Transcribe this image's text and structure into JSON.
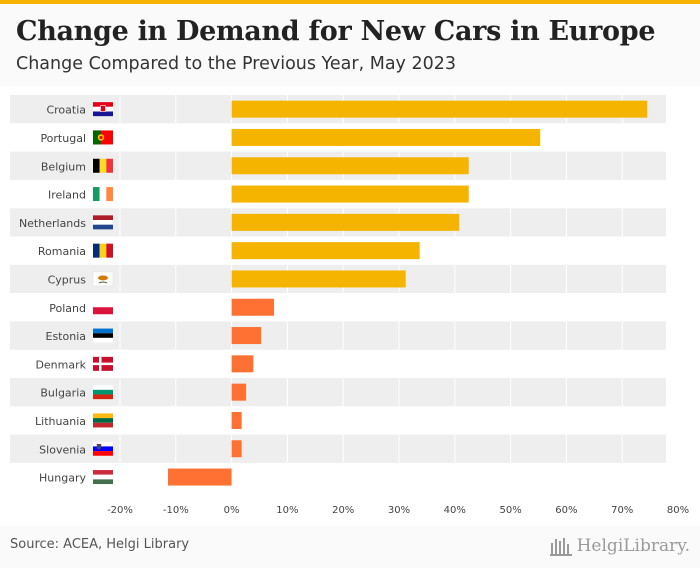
{
  "header": {
    "title": "Change in Demand for New Cars in Europe",
    "subtitle": "Change Compared to the Previous Year, May 2023"
  },
  "footer": {
    "source": "Source: ACEA, Helgi Library",
    "brand": "HelgiLibrary."
  },
  "colors": {
    "accent": "#f5b400",
    "bar_high": "#f5b400",
    "bar_low": "#ff7033",
    "band": "#eeeeee"
  },
  "chart_data": {
    "type": "bar",
    "orientation": "horizontal",
    "title": "Change in Demand for New Cars in Europe",
    "subtitle": "Change Compared to the Previous Year, May 2023",
    "xlabel": "",
    "ylabel": "",
    "xlim": [
      -20,
      80
    ],
    "x_ticks": [
      "-20%",
      "-10%",
      "0%",
      "10%",
      "20%",
      "30%",
      "40%",
      "50%",
      "60%",
      "70%",
      "80%"
    ],
    "grid": true,
    "categories": [
      "Croatia",
      "Portugal",
      "Belgium",
      "Ireland",
      "Netherlands",
      "Romania",
      "Cyprus",
      "Poland",
      "Estonia",
      "Denmark",
      "Bulgaria",
      "Lithuania",
      "Slovenia",
      "Hungary"
    ],
    "flags": [
      "croatia-flag-icon",
      "portugal-flag-icon",
      "belgium-flag-icon",
      "ireland-flag-icon",
      "netherlands-flag-icon",
      "romania-flag-icon",
      "cyprus-flag-icon",
      "poland-flag-icon",
      "estonia-flag-icon",
      "denmark-flag-icon",
      "bulgaria-flag-icon",
      "lithuania-flag-icon",
      "slovenia-flag-icon",
      "hungary-flag-icon"
    ],
    "values": [
      74.5,
      55.3,
      42.5,
      42.5,
      40.8,
      33.7,
      31.2,
      7.6,
      5.3,
      3.9,
      2.6,
      1.8,
      1.8,
      -11.4
    ],
    "bar_colors": [
      "#f5b400",
      "#f5b400",
      "#f5b400",
      "#f5b400",
      "#f5b400",
      "#f5b400",
      "#f5b400",
      "#ff7033",
      "#ff7033",
      "#ff7033",
      "#ff7033",
      "#ff7033",
      "#ff7033",
      "#ff7033"
    ]
  }
}
